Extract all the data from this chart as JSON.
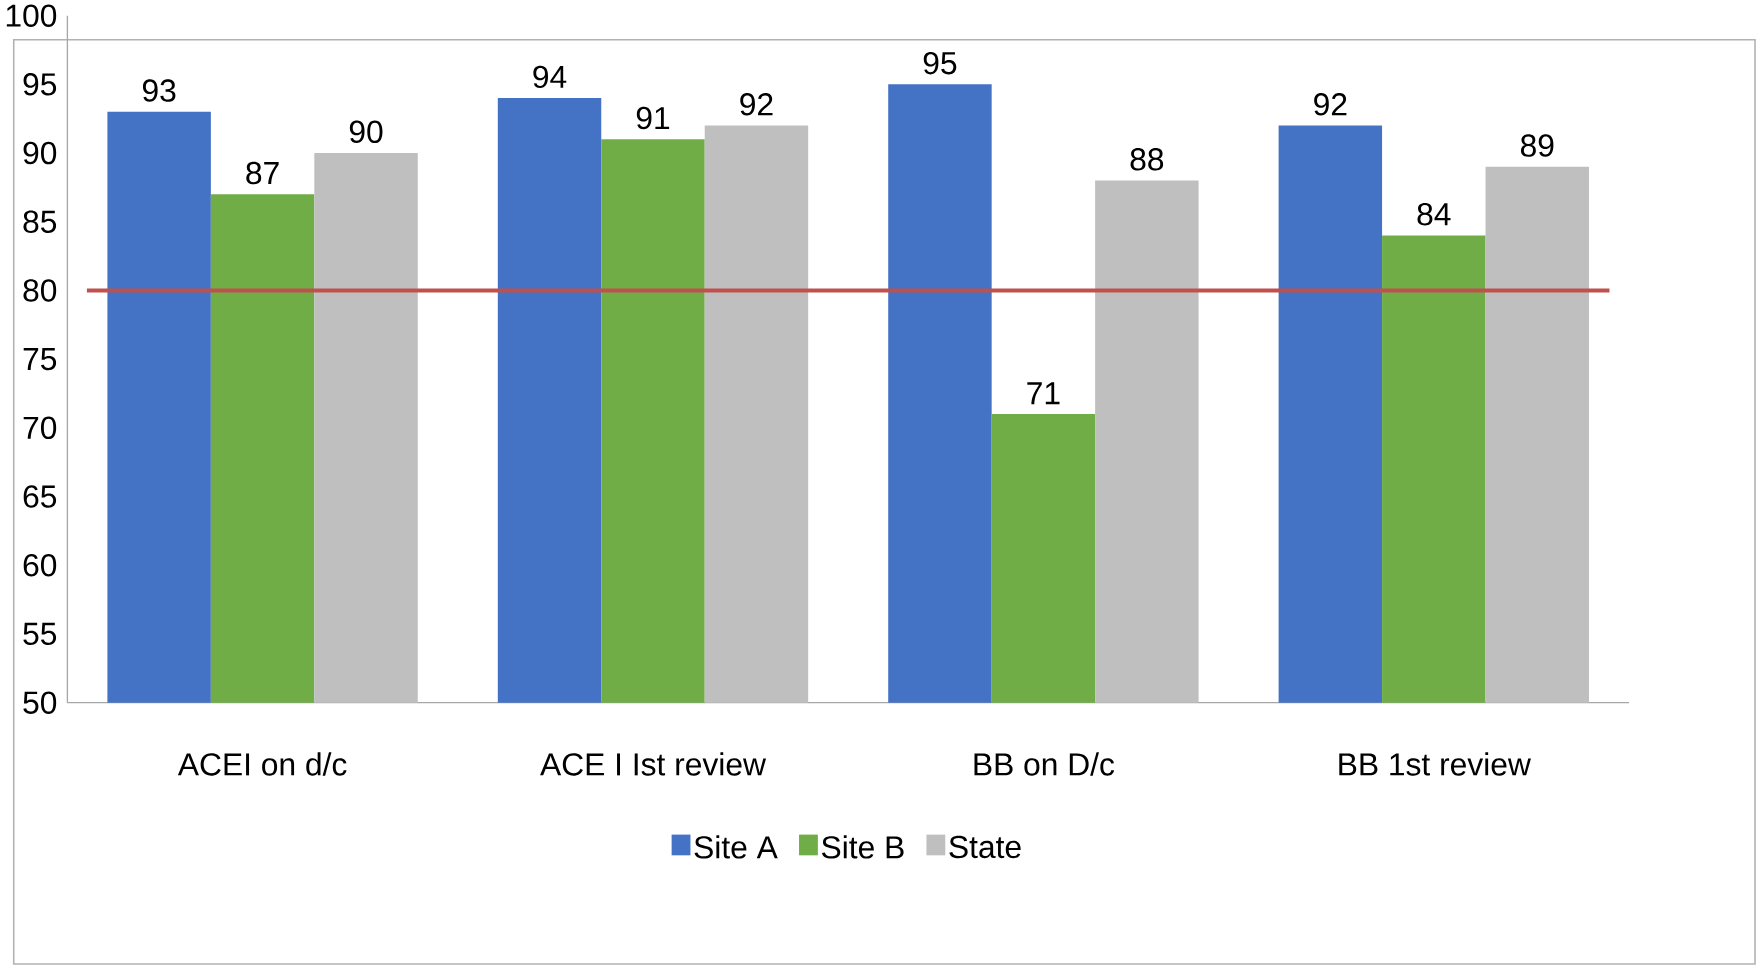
{
  "chart_data": {
    "type": "bar",
    "categories": [
      "ACEI on d/c",
      "ACE I Ist review",
      "BB on D/c",
      "BB 1st review"
    ],
    "series": [
      {
        "name": "Site A",
        "color": "#4472c4",
        "values": [
          93,
          94,
          95,
          92
        ]
      },
      {
        "name": "Site B",
        "color": "#70ad47",
        "values": [
          87,
          91,
          71,
          84
        ]
      },
      {
        "name": "State",
        "color": "#bfbfbf",
        "values": [
          90,
          92,
          88,
          89
        ]
      }
    ],
    "ylim": [
      50,
      100
    ],
    "yticks": [
      50,
      55,
      60,
      65,
      70,
      75,
      80,
      85,
      90,
      95,
      100
    ],
    "ref_lines": [
      {
        "axis": "y",
        "value": 80,
        "color": "#c0504d"
      }
    ],
    "data_labels": true,
    "grid": false,
    "legend": "bottom"
  }
}
